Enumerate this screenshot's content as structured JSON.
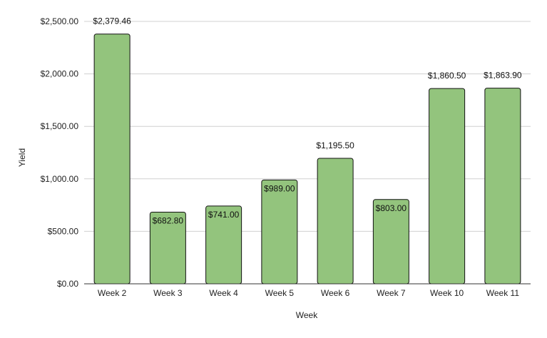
{
  "chart_data": {
    "type": "bar",
    "categories": [
      "Week 2",
      "Week 3",
      "Week 4",
      "Week 5",
      "Week 6",
      "Week 7",
      "Week 10",
      "Week 11"
    ],
    "values": [
      2379.46,
      682.8,
      741.0,
      989.0,
      1195.5,
      803.0,
      1860.5,
      1863.9
    ],
    "data_labels": [
      "$2,379.46",
      "$682.80",
      "$741.00",
      "$989.00",
      "$1,195.50",
      "$803.00",
      "$1,860.50",
      "$1,863.90"
    ],
    "xlabel": "Week",
    "ylabel": "Yield",
    "ylim": [
      0,
      2500
    ],
    "yticks": [
      0,
      500,
      1000,
      1500,
      2000,
      2500
    ],
    "ytick_labels": [
      "$0.00",
      "$500.00",
      "$1,000.00",
      "$1,500.00",
      "$2,000.00",
      "$2,500.00"
    ],
    "grid": true,
    "legend": "none",
    "colors": {
      "bar_fill": "#93c47d",
      "bar_stroke": "#111111",
      "grid": "#d0d0d0"
    }
  }
}
